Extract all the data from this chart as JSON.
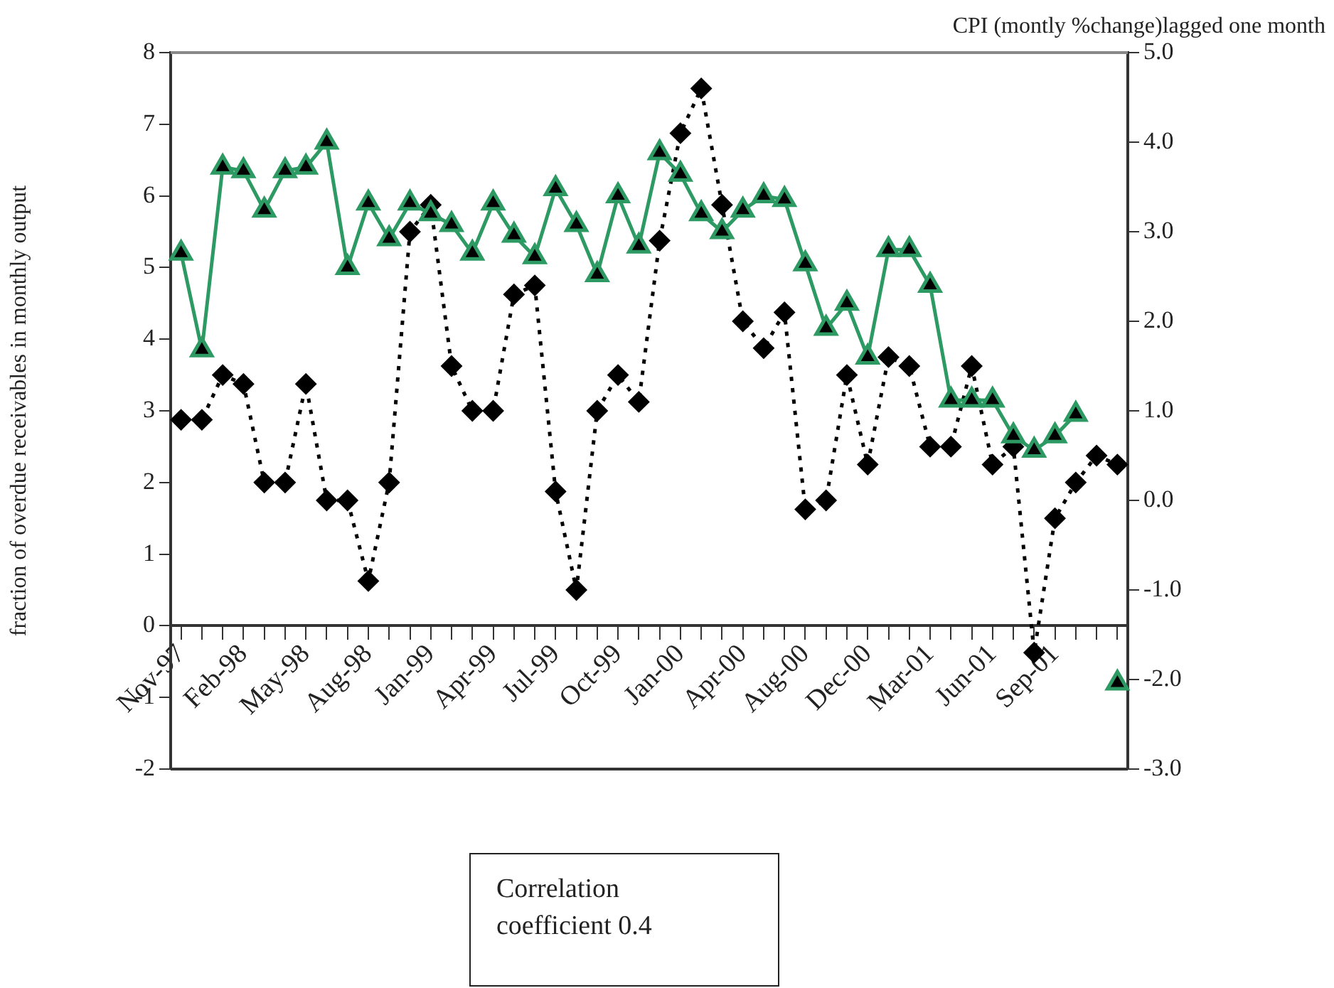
{
  "chart_data": {
    "type": "line",
    "ylabel": "fraction of overdue receivables in monthly output",
    "y2label": "CPI (montly %change)lagged one month",
    "categories": [
      "Nov-97",
      null,
      null,
      "Feb-98",
      null,
      null,
      "May-98",
      null,
      null,
      "Aug-98",
      null,
      null,
      "Jan-99",
      null,
      null,
      "Apr-99",
      null,
      null,
      "Jul-99",
      null,
      null,
      "Oct-99",
      null,
      null,
      "Jan-00",
      null,
      null,
      "Apr-00",
      null,
      null,
      "Aug-00",
      null,
      null,
      "Dec-00",
      null,
      null,
      "Mar-01",
      null,
      null,
      "Jun-01",
      null,
      null,
      "Sep-01",
      null,
      null,
      null
    ],
    "series": [
      {
        "color": "#2e9a63",
        "marker": "triangle",
        "line_style": "solid",
        "values": [
          5.2,
          3.85,
          6.4,
          6.35,
          5.8,
          6.35,
          6.4,
          6.75,
          5.0,
          5.9,
          5.4,
          5.9,
          5.75,
          5.6,
          5.2,
          5.9,
          5.45,
          5.15,
          6.1,
          5.6,
          4.9,
          6.0,
          5.3,
          6.6,
          6.3,
          5.75,
          5.5,
          5.8,
          6.0,
          5.95,
          5.05,
          4.15,
          4.5,
          3.75,
          5.25,
          5.25,
          4.75,
          3.15,
          3.15,
          3.15,
          2.65,
          2.45,
          2.65,
          2.95,
          null,
          -0.8
        ]
      },
      {
        "color": "#000000",
        "marker": "diamond",
        "line_style": "dotted",
        "axis": "y2",
        "values": [
          0.9,
          0.9,
          1.4,
          1.3,
          0.2,
          0.2,
          1.3,
          0.0,
          0.0,
          -0.9,
          0.2,
          3.0,
          3.3,
          1.5,
          1.0,
          1.0,
          2.3,
          2.4,
          0.1,
          -1.0,
          1.0,
          1.4,
          1.1,
          2.9,
          4.1,
          4.6,
          3.3,
          2.0,
          1.7,
          2.1,
          -0.1,
          0.0,
          1.4,
          0.4,
          1.6,
          1.5,
          0.6,
          0.6,
          1.5,
          0.4,
          0.6,
          -1.7,
          -0.2,
          0.2,
          0.5,
          0.4
        ]
      }
    ],
    "ylim": [
      -2,
      8
    ],
    "yticks": [
      -2,
      -1,
      0,
      1,
      2,
      3,
      4,
      5,
      6,
      7,
      8
    ],
    "y2lim": [
      -3,
      5
    ],
    "y2ticks": [
      {
        "value": -3,
        "label": "-3.0"
      },
      {
        "value": -2,
        "label": "-2.0"
      },
      {
        "value": -1,
        "label": "-1.0"
      },
      {
        "value": 0,
        "label": "0.0"
      },
      {
        "value": 1,
        "label": "1.0"
      },
      {
        "value": 2,
        "label": "2.0"
      },
      {
        "value": 3,
        "label": "3.0"
      },
      {
        "value": 4,
        "label": "4.0"
      },
      {
        "value": 5,
        "label": "5.0"
      }
    ],
    "grid": false,
    "legend": false,
    "annotations": [
      "Correlation coefficient 0.4"
    ]
  }
}
